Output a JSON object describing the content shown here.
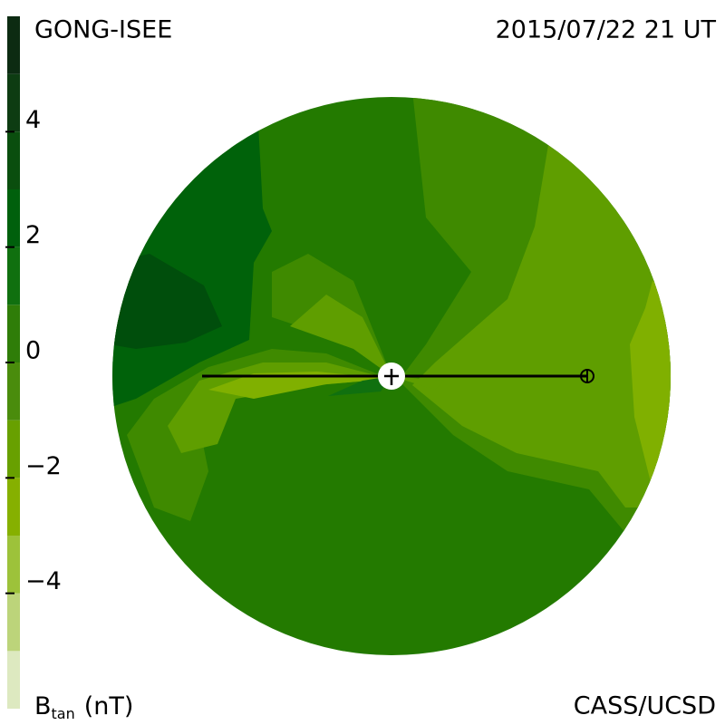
{
  "header": {
    "source": "GONG-ISEE",
    "timestamp": "2015/07/22 21 UT",
    "credit": "CASS/UCSD"
  },
  "chart_data": {
    "type": "colorbar",
    "label": {
      "symbol": "B",
      "subscript": "tan",
      "unit": "(nT)"
    },
    "ylim": [
      -6,
      6
    ],
    "yticks": [
      4,
      2,
      0,
      {
        "value": -2,
        "label": "−2"
      },
      {
        "value": -4,
        "label": "−4"
      }
    ],
    "bounds": [
      -6,
      -5,
      -4,
      -3,
      -2,
      -1,
      0,
      1,
      2,
      3,
      4,
      5,
      6
    ],
    "colors": [
      "#dde9c0",
      "#bcd47a",
      "#9dc23a",
      "#86b000",
      "#68a000",
      "#4a8c0c",
      "#2f7d08",
      "#10700f",
      "#00600c",
      "#0a4e0e",
      "#0d3c12",
      "#0c2b12"
    ]
  }
}
